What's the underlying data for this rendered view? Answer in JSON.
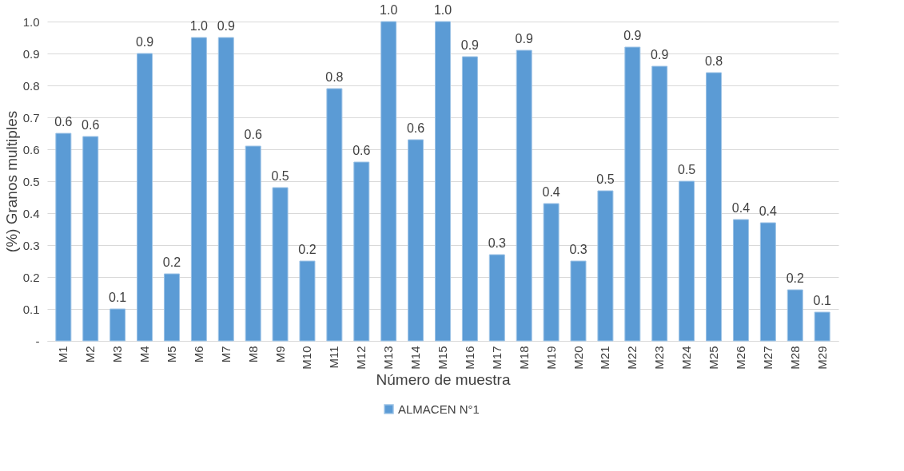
{
  "chart_data": {
    "type": "bar",
    "xlabel": "Número de muestra",
    "ylabel": "(%) Granos multiples",
    "categories": [
      "M1",
      "M2",
      "M3",
      "M4",
      "M5",
      "M6",
      "M7",
      "M8",
      "M9",
      "M10",
      "M11",
      "M12",
      "M13",
      "M14",
      "M15",
      "M16",
      "M17",
      "M18",
      "M19",
      "M20",
      "M21",
      "M22",
      "M23",
      "M24",
      "M25",
      "M26",
      "M27",
      "M28",
      "M29"
    ],
    "series": [
      {
        "name": "ALMACEN N°1",
        "color": "#5b9bd5",
        "values": [
          0.65,
          0.64,
          0.1,
          0.9,
          0.21,
          0.95,
          0.95,
          0.61,
          0.48,
          0.25,
          0.79,
          0.56,
          1.0,
          0.63,
          1.0,
          0.89,
          0.27,
          0.91,
          0.43,
          0.25,
          0.47,
          0.92,
          0.86,
          0.5,
          0.84,
          0.38,
          0.37,
          0.16,
          0.09
        ],
        "value_labels": [
          "0.6",
          "0.6",
          "0.1",
          "0.9",
          "0.2",
          "1.0",
          "0.9",
          "0.6",
          "0.5",
          "0.2",
          "0.8",
          "0.6",
          "1.0",
          "0.6",
          "1.0",
          "0.9",
          "0.3",
          "0.9",
          "0.4",
          "0.3",
          "0.5",
          "0.9",
          "0.9",
          "0.5",
          "0.8",
          "0.4",
          "0.4",
          "0.2",
          "0.1"
        ]
      }
    ],
    "ylim": [
      0,
      1.0
    ],
    "yticks": [
      {
        "value": 0,
        "label": "-"
      },
      0.1,
      0.2,
      0.3,
      0.4,
      0.5,
      0.6,
      0.7,
      0.8,
      0.9,
      {
        "value": 1,
        "label": "1.0"
      }
    ],
    "grid": "y",
    "legend": "bottom"
  }
}
